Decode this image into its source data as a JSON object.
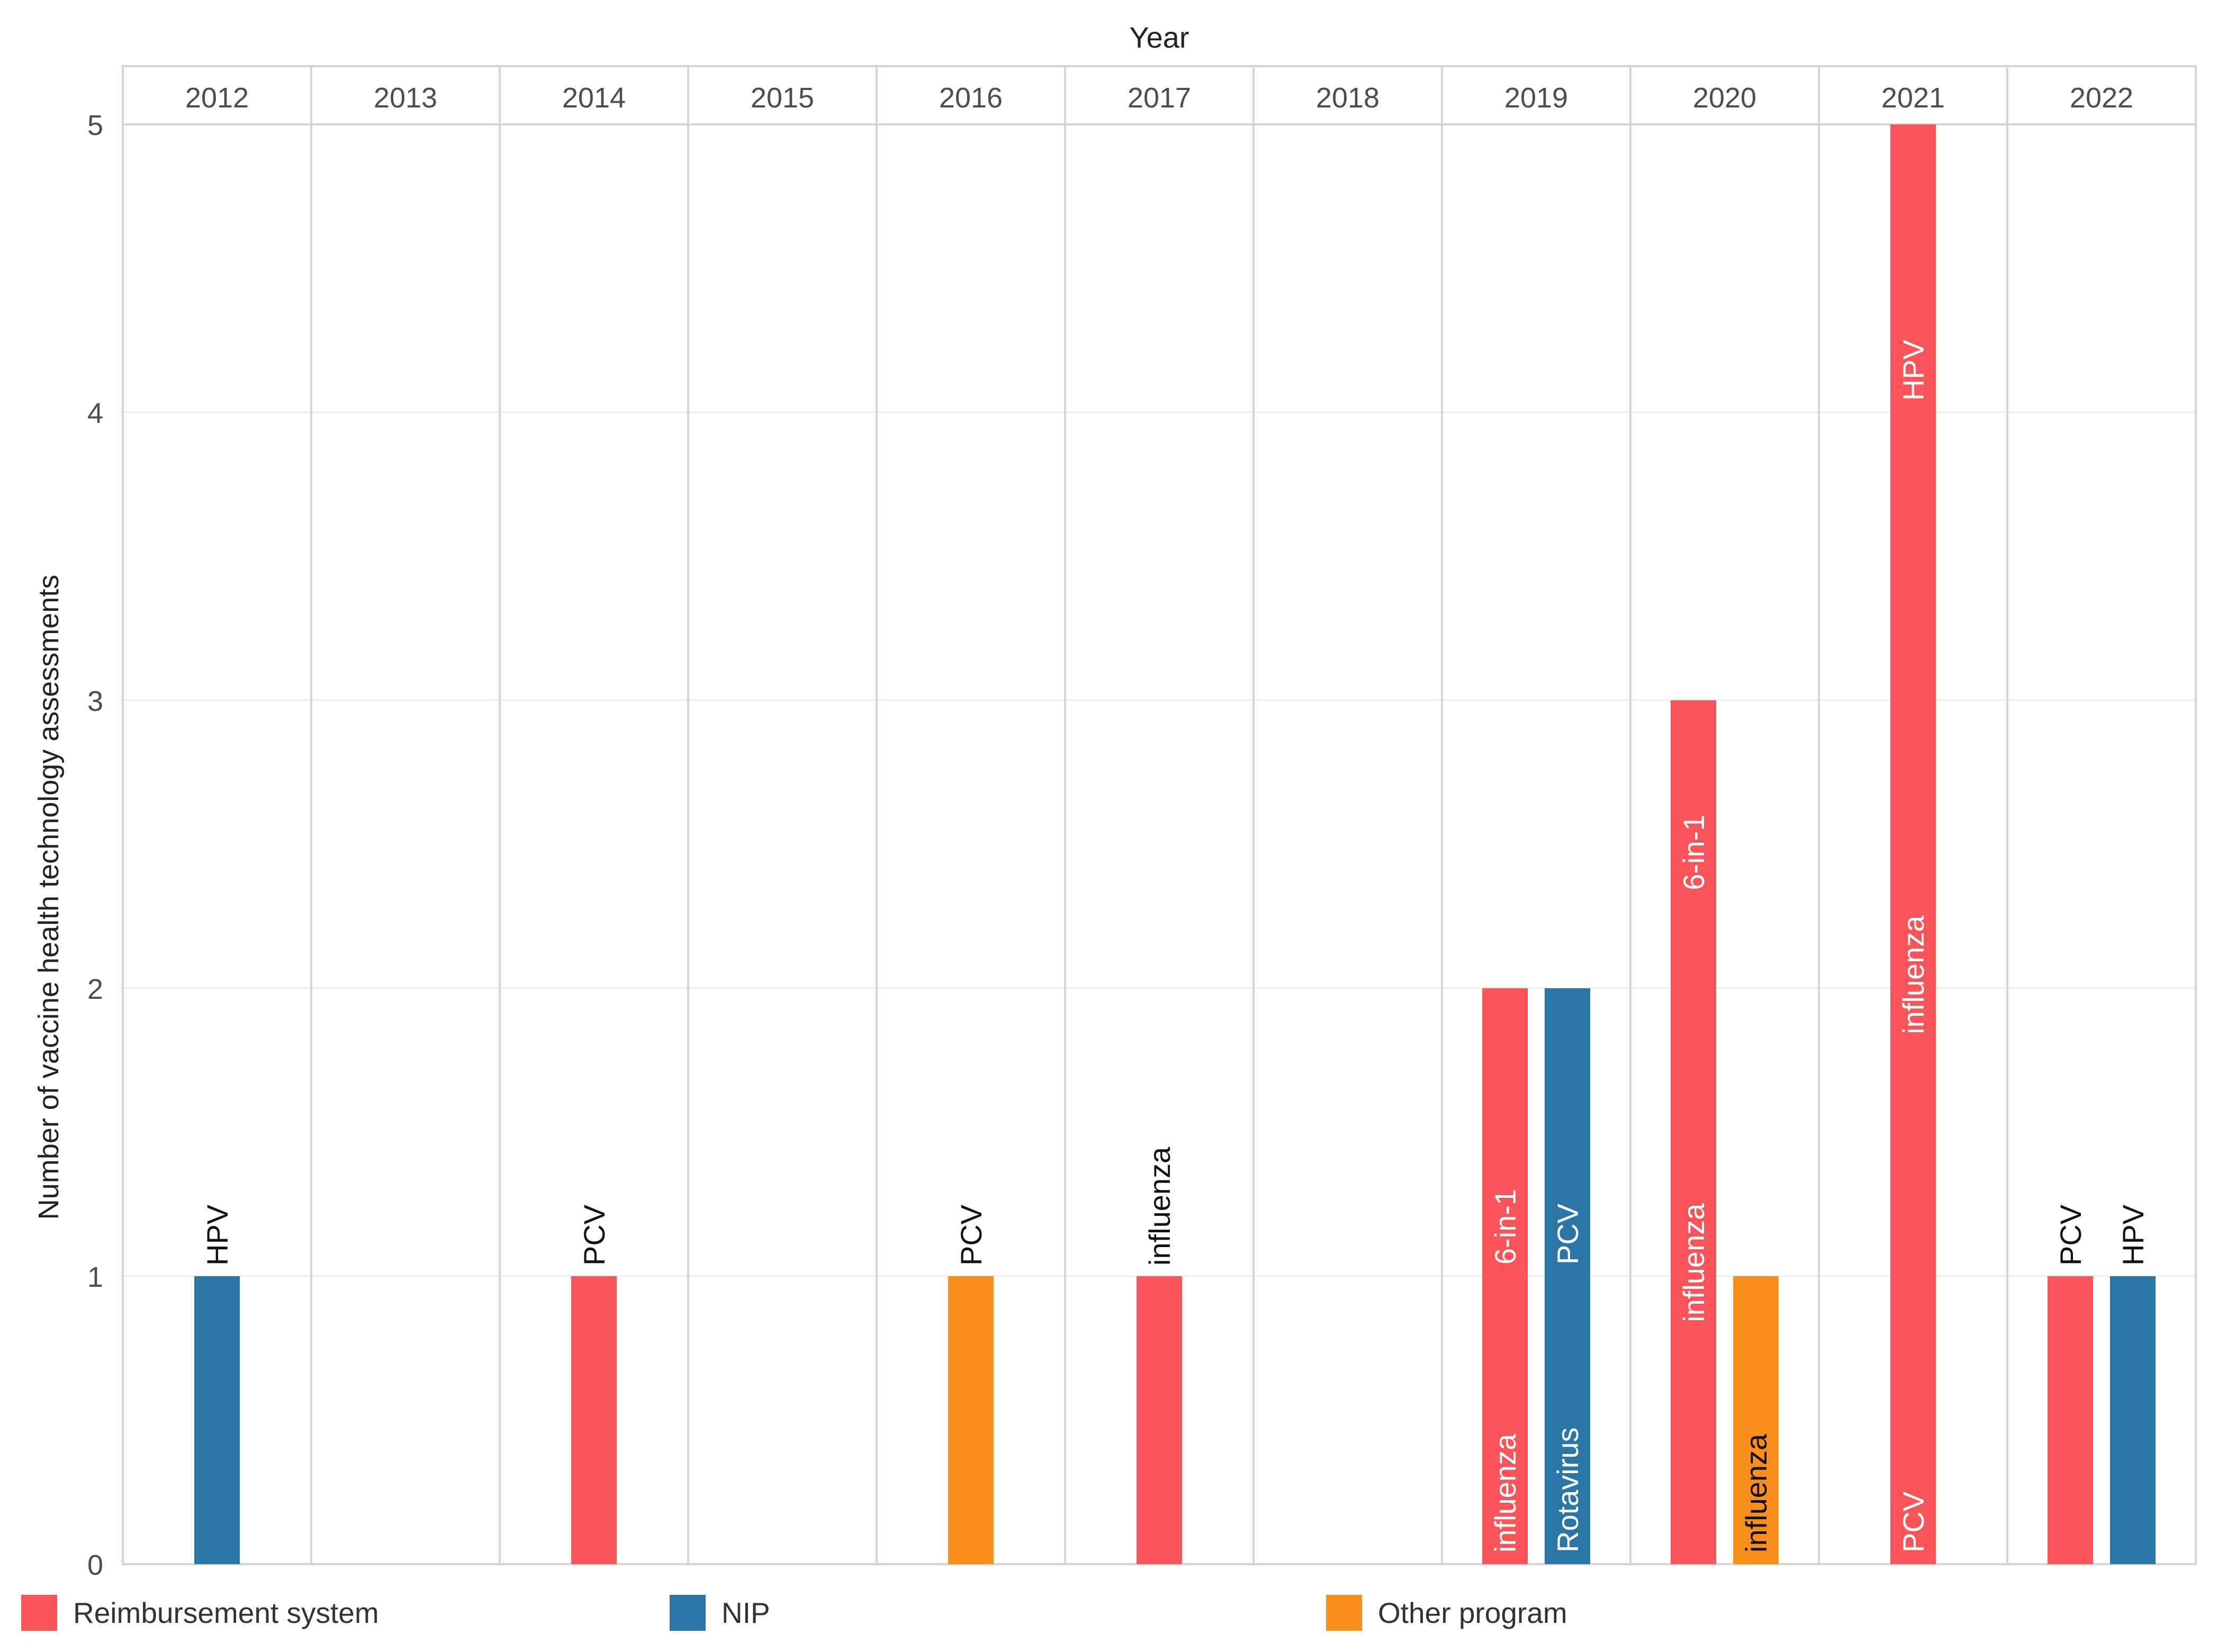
{
  "chart_data": {
    "type": "bar",
    "layout": "faceted-by-year",
    "title": "",
    "facet_label": "Year",
    "ylabel": "Number of vaccine health technology assessments",
    "ylim": [
      0,
      5
    ],
    "yticks": [
      0,
      1,
      2,
      3,
      4,
      5
    ],
    "facets": [
      {
        "year": "2012",
        "bars": [
          {
            "series": "NIP",
            "value": 1,
            "labels": [
              {
                "text": "HPV",
                "at": 1,
                "outside": true
              }
            ]
          }
        ]
      },
      {
        "year": "2013",
        "bars": []
      },
      {
        "year": "2014",
        "bars": [
          {
            "series": "Reimbursement system",
            "value": 1,
            "labels": [
              {
                "text": "PCV",
                "at": 1,
                "outside": true
              }
            ]
          }
        ]
      },
      {
        "year": "2015",
        "bars": []
      },
      {
        "year": "2016",
        "bars": [
          {
            "series": "Other program",
            "value": 1,
            "labels": [
              {
                "text": "PCV",
                "at": 1,
                "outside": true
              }
            ]
          }
        ]
      },
      {
        "year": "2017",
        "bars": [
          {
            "series": "Reimbursement system",
            "value": 1,
            "labels": [
              {
                "text": "influenza",
                "at": 1,
                "outside": true
              }
            ]
          }
        ]
      },
      {
        "year": "2018",
        "bars": []
      },
      {
        "year": "2019",
        "bars": [
          {
            "series": "Reimbursement system",
            "value": 2,
            "labels": [
              {
                "text": "influenza",
                "at": 0
              },
              {
                "text": "6-in-1",
                "at": 1
              }
            ]
          },
          {
            "series": "NIP",
            "value": 2,
            "labels": [
              {
                "text": "Rotavirus",
                "at": 0
              },
              {
                "text": "PCV",
                "at": 1
              }
            ]
          }
        ]
      },
      {
        "year": "2020",
        "bars": [
          {
            "series": "Reimbursement system",
            "value": 3,
            "labels": [
              {
                "text": "influenza",
                "at": 0.8
              },
              {
                "text": "6-in-1",
                "at": 2.3
              }
            ]
          },
          {
            "series": "Other program",
            "value": 1,
            "labels": [
              {
                "text": "influenza",
                "at": 0
              }
            ]
          }
        ]
      },
      {
        "year": "2021",
        "bars": [
          {
            "series": "Reimbursement system",
            "value": 5,
            "labels": [
              {
                "text": "PCV",
                "at": 0
              },
              {
                "text": "influenza",
                "at": 1.8
              },
              {
                "text": "HPV",
                "at": 4
              }
            ]
          }
        ]
      },
      {
        "year": "2022",
        "bars": [
          {
            "series": "Reimbursement system",
            "value": 1,
            "labels": [
              {
                "text": "PCV",
                "at": 1,
                "outside": true
              }
            ]
          },
          {
            "series": "NIP",
            "value": 1,
            "labels": [
              {
                "text": "HPV",
                "at": 1,
                "outside": true
              }
            ]
          }
        ]
      }
    ],
    "series": [
      {
        "name": "Reimbursement system",
        "color": "#F8545A"
      },
      {
        "name": "NIP",
        "color": "#2A76A6"
      },
      {
        "name": "Other program",
        "color": "#F98E1D"
      }
    ],
    "legend_position": "bottom"
  }
}
